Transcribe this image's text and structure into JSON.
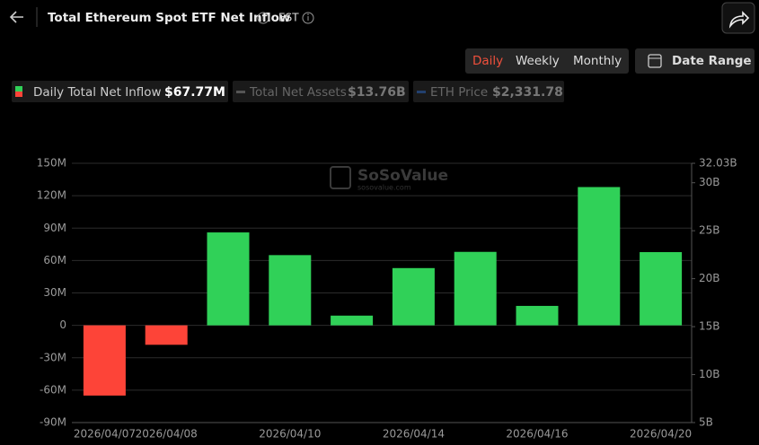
{
  "header": {
    "title": "Total Ethereum Spot ETF Net Inflow",
    "timezone": "EST"
  },
  "tabs": [
    "Daily",
    "Weekly",
    "Monthly"
  ],
  "active_tab": 0,
  "date_button": "Date Range",
  "watermark": {
    "brand": "SoSoValue",
    "site": "sosovalue.com"
  },
  "chart_data": {
    "type": "bar",
    "categories": [
      "2026/04/07",
      "2026/04/08",
      null,
      "2026/04/10",
      null,
      "2026/04/14",
      null,
      "2026/04/16",
      null,
      "2026/04/20"
    ],
    "series": [
      {
        "name": "Daily Total Net Inflow",
        "summary": "$67.77M",
        "values": [
          -65,
          -18,
          86,
          65,
          9,
          53,
          68,
          18,
          128,
          67.77
        ]
      }
    ],
    "inactive_legend": [
      {
        "name": "Total Net Assets",
        "summary": "$13.76B",
        "color": "#555555"
      },
      {
        "name": "ETH Price",
        "summary": "$2,331.78",
        "color": "#22406e"
      }
    ],
    "positive_color": "#30d158",
    "negative_color": "#fd4438",
    "ylim": [
      -90,
      150
    ],
    "yticks": [
      {
        "value": -90,
        "label": "-90M"
      },
      {
        "value": -60,
        "label": "-60M"
      },
      {
        "value": -30,
        "label": "-30M"
      },
      0,
      {
        "value": 30,
        "label": "30M"
      },
      {
        "value": 60,
        "label": "60M"
      },
      {
        "value": 90,
        "label": "90M"
      },
      {
        "value": 120,
        "label": "120M"
      },
      {
        "value": 150,
        "label": "150M"
      }
    ],
    "y2lim": [
      5,
      32.03
    ],
    "y2ticks": [
      {
        "value": 5,
        "label": "5B"
      },
      {
        "value": 10,
        "label": "10B"
      },
      {
        "value": 15,
        "label": "15B"
      },
      {
        "value": 20,
        "label": "20B"
      },
      {
        "value": 25,
        "label": "25B"
      },
      {
        "value": 30,
        "label": "30B"
      },
      {
        "value": 32.03,
        "label": "32.03B"
      }
    ],
    "grid": true
  }
}
